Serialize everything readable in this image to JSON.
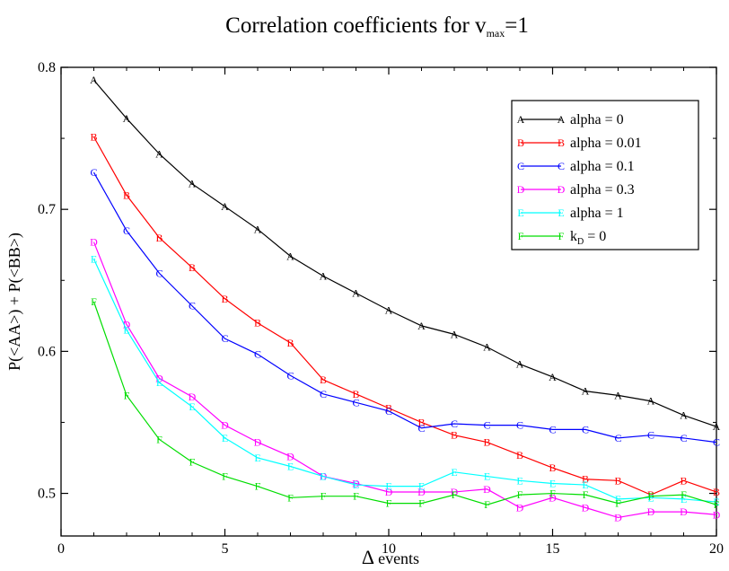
{
  "chart_data": {
    "type": "line",
    "title": "Correlation coefficients for v",
    "title_sub": "max",
    "title_suffix": "=1",
    "xlabel_symbol": "Δ",
    "xlabel": "events",
    "ylabel": "P(<AA>) + P(<BB>)",
    "xlim": [
      0,
      20
    ],
    "ylim": [
      0.47,
      0.8
    ],
    "xticks": [
      0,
      5,
      10,
      15,
      20
    ],
    "yticks": [
      0.5,
      0.6,
      0.7,
      0.8
    ],
    "grid": false,
    "legend_position": "top-right",
    "x": [
      1,
      2,
      3,
      4,
      5,
      6,
      7,
      8,
      9,
      10,
      11,
      12,
      13,
      14,
      15,
      16,
      17,
      18,
      19,
      20
    ],
    "series": [
      {
        "name": "alpha = 0",
        "marker": "A",
        "color": "#000000",
        "values": [
          0.791,
          0.764,
          0.739,
          0.718,
          0.702,
          0.686,
          0.667,
          0.653,
          0.641,
          0.629,
          0.618,
          0.612,
          0.603,
          0.591,
          0.582,
          0.572,
          0.569,
          0.565,
          0.555,
          0.547
        ]
      },
      {
        "name": "alpha = 0.01",
        "marker": "B",
        "color": "#ff0000",
        "values": [
          0.751,
          0.71,
          0.68,
          0.659,
          0.637,
          0.62,
          0.606,
          0.58,
          0.57,
          0.56,
          0.55,
          0.541,
          0.536,
          0.527,
          0.518,
          0.51,
          0.509,
          0.499,
          0.509,
          0.501
        ]
      },
      {
        "name": "alpha = 0.1",
        "marker": "C",
        "color": "#0000ff",
        "values": [
          0.726,
          0.685,
          0.655,
          0.632,
          0.609,
          0.598,
          0.583,
          0.57,
          0.564,
          0.558,
          0.546,
          0.549,
          0.548,
          0.548,
          0.545,
          0.545,
          0.539,
          0.541,
          0.539,
          0.536
        ]
      },
      {
        "name": "alpha = 0.3",
        "marker": "D",
        "color": "#ff00ff",
        "values": [
          0.677,
          0.619,
          0.581,
          0.568,
          0.548,
          0.536,
          0.526,
          0.512,
          0.507,
          0.501,
          0.501,
          0.501,
          0.503,
          0.49,
          0.497,
          0.49,
          0.483,
          0.487,
          0.487,
          0.485
        ]
      },
      {
        "name": "alpha = 1",
        "marker": "E",
        "color": "#00ffff",
        "values": [
          0.665,
          0.615,
          0.578,
          0.561,
          0.539,
          0.525,
          0.519,
          0.512,
          0.506,
          0.505,
          0.505,
          0.515,
          0.512,
          0.509,
          0.507,
          0.506,
          0.496,
          0.497,
          0.496,
          0.494
        ]
      },
      {
        "name": "k",
        "name_sub": "D",
        "name_suffix": " = 0",
        "marker": "F",
        "color": "#00dd00",
        "values": [
          0.635,
          0.569,
          0.538,
          0.522,
          0.512,
          0.505,
          0.497,
          0.498,
          0.498,
          0.493,
          0.493,
          0.499,
          0.492,
          0.499,
          0.5,
          0.499,
          0.493,
          0.498,
          0.499,
          0.492
        ]
      }
    ]
  }
}
